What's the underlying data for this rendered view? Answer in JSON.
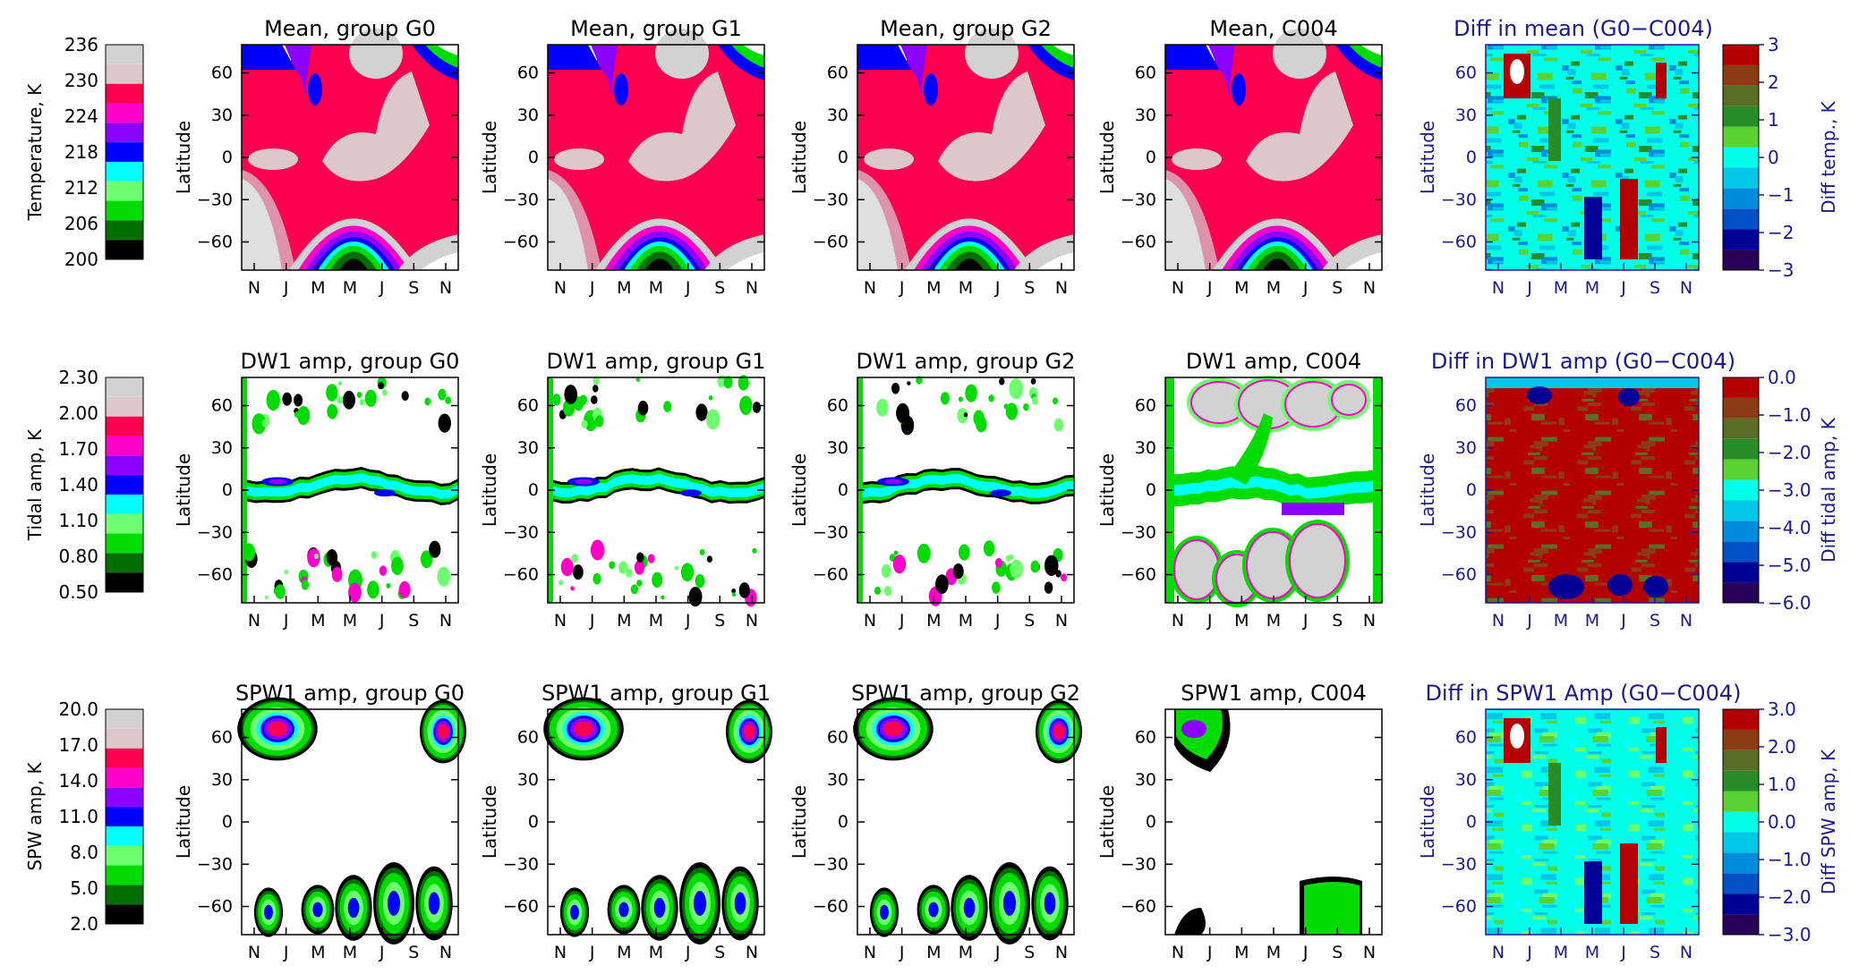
{
  "months": [
    "N",
    "J",
    "M",
    "M",
    "J",
    "S",
    "N"
  ],
  "ylabel": "Latitude",
  "yticks": [
    60,
    30,
    0,
    -30,
    -60
  ],
  "ylim": [
    -80,
    80
  ],
  "colors": {
    "ramp": [
      "#000000",
      "#006e00",
      "#00dc00",
      "#6eff6e",
      "#00ffff",
      "#0000ff",
      "#8c00ff",
      "#ff00c8",
      "#ff0050",
      "#dcc8c8",
      "#d2d2d2"
    ],
    "diverging": [
      "#28005a",
      "#000096",
      "#0050c8",
      "#008cdc",
      "#00c8e6",
      "#00ffe6",
      "#5ad232",
      "#288c28",
      "#5a6e28",
      "#8c3c14",
      "#b40000"
    ],
    "diff_axis": "#1a1a8c"
  },
  "rows": [
    {
      "colorbar": {
        "label": "Temperature, K",
        "ticks": [
          "236",
          "230",
          "224",
          "218",
          "212",
          "206",
          "200"
        ]
      },
      "panels": [
        {
          "title": "Mean, group G0"
        },
        {
          "title": "Mean, group G1"
        },
        {
          "title": "Mean, group G2"
        },
        {
          "title": "Mean, C004"
        },
        {
          "title": "Diff in mean (G0−C004)"
        }
      ],
      "diff_bar": {
        "label": "Diff temp., K",
        "ticks": [
          "3",
          "2",
          "1",
          "0",
          "−1",
          "−2",
          "−3"
        ]
      }
    },
    {
      "colorbar": {
        "label": "Tidal amp, K",
        "ticks": [
          "2.30",
          "2.00",
          "1.70",
          "1.40",
          "1.10",
          "0.80",
          "0.50"
        ]
      },
      "panels": [
        {
          "title": "DW1 amp, group G0"
        },
        {
          "title": "DW1 amp, group G1"
        },
        {
          "title": "DW1 amp, group G2"
        },
        {
          "title": "DW1 amp, C004"
        },
        {
          "title": "Diff in DW1 amp (G0−C004)"
        }
      ],
      "diff_bar": {
        "label": "Diff tidal amp, K",
        "ticks": [
          "0.0",
          "−1.0",
          "−2.0",
          "−3.0",
          "−4.0",
          "−5.0",
          "−6.0"
        ]
      }
    },
    {
      "colorbar": {
        "label": "SPW amp, K",
        "ticks": [
          "20.0",
          "17.0",
          "14.0",
          "11.0",
          "8.0",
          "5.0",
          "2.0"
        ]
      },
      "panels": [
        {
          "title": "SPW1 amp, group G0"
        },
        {
          "title": "SPW1 amp, group G1"
        },
        {
          "title": "SPW1 amp, group G2"
        },
        {
          "title": "SPW1 amp, C004"
        },
        {
          "title": "Diff in SPW1 Amp (G0−C004)"
        }
      ],
      "diff_bar": {
        "label": "Diff SPW amp, K",
        "ticks": [
          "3.0",
          "2.0",
          "1.0",
          "0.0",
          "−1.0",
          "−2.0",
          "−3.0"
        ]
      }
    }
  ],
  "chart_data": {
    "type": "heatmap",
    "description_fields": {
      "x_axis": "month",
      "y_axis": "latitude (deg)"
    },
    "panels_per_row": 5,
    "rows": 3,
    "grid": false
  }
}
